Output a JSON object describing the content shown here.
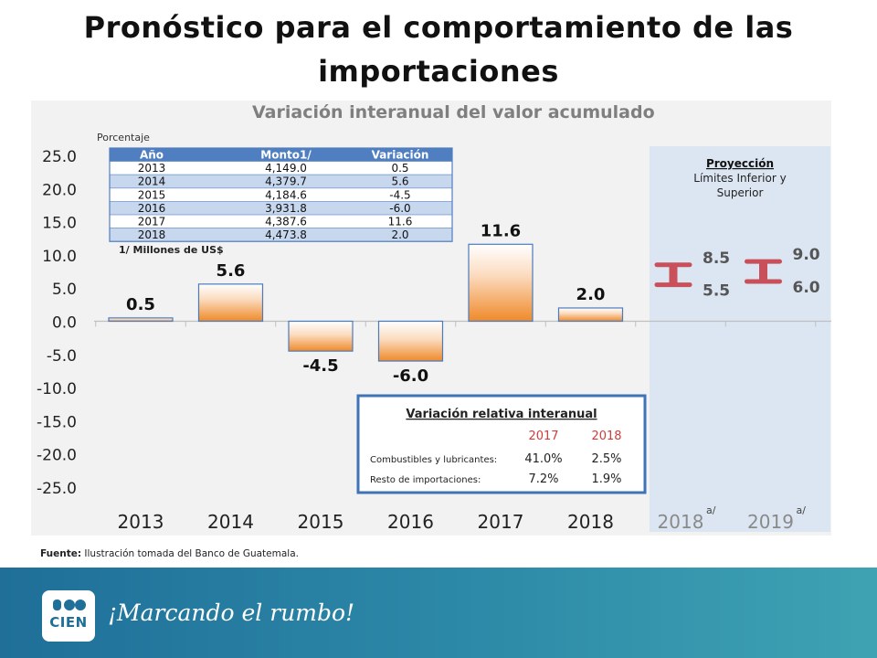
{
  "slide": {
    "title": "Pronóstico para el comportamiento de las importaciones",
    "source_label": "Fuente:",
    "source_text": " Ilustración tomada del Banco de Guatemala.",
    "slogan": "¡Marcando el rumbo!",
    "logo_text": "CIEN"
  },
  "chart_data": {
    "type": "bar",
    "title": "Variación interanual del valor acumulado",
    "ylabel": "Porcentaje",
    "ylim": [
      -25,
      25
    ],
    "yticks": [
      "25.0",
      "20.0",
      "15.0",
      "10.0",
      "5.0",
      "0.0",
      "-5.0",
      "-10.0",
      "-15.0",
      "-20.0",
      "-25.0"
    ],
    "categories": [
      "2013",
      "2014",
      "2015",
      "2016",
      "2017",
      "2018"
    ],
    "values": [
      0.5,
      5.6,
      -4.5,
      -6.0,
      11.6,
      2.0
    ],
    "value_labels": [
      "0.5",
      "5.6",
      "-4.5",
      "-6.0",
      "11.6",
      "2.0"
    ],
    "projection": {
      "title": "Proyección",
      "subtitle_line1": "Límites Inferior y",
      "subtitle_line2": "Superior",
      "items": [
        {
          "category": "2018",
          "superscript": "a/",
          "lower": 5.5,
          "upper": 8.5,
          "lower_label": "5.5",
          "upper_label": "8.5"
        },
        {
          "category": "2019",
          "superscript": "a/",
          "lower": 6.0,
          "upper": 9.0,
          "lower_label": "6.0",
          "upper_label": "9.0"
        }
      ]
    },
    "table": {
      "headers": [
        "Año",
        "Monto1/",
        "Variación"
      ],
      "rows": [
        [
          "2013",
          "4,149.0",
          "0.5"
        ],
        [
          "2014",
          "4,379.7",
          "5.6"
        ],
        [
          "2015",
          "4,184.6",
          "-4.5"
        ],
        [
          "2016",
          "3,931.8",
          "-6.0"
        ],
        [
          "2017",
          "4,387.6",
          "11.6"
        ],
        [
          "2018",
          "4,473.8",
          "2.0"
        ]
      ],
      "footnote": "1/ Millones de US$"
    },
    "relative": {
      "title": "Variación relativa interanual",
      "years": [
        "2017",
        "2018"
      ],
      "rows": [
        {
          "label": "Combustibles y lubricantes:",
          "values": [
            "41.0%",
            "2.5%"
          ]
        },
        {
          "label": "Resto de importaciones:",
          "values": [
            "7.2%",
            "1.9%"
          ]
        }
      ]
    },
    "colors": {
      "bar_fill": "#ef8a2a",
      "bar_border": "#4a7bbf",
      "projection_bg": "#dce6f2",
      "projection_marker": "#c9505a",
      "table_header": "#4f7fc0",
      "relative_years": "#d33b3b",
      "relative_border": "#3f73b8"
    }
  }
}
